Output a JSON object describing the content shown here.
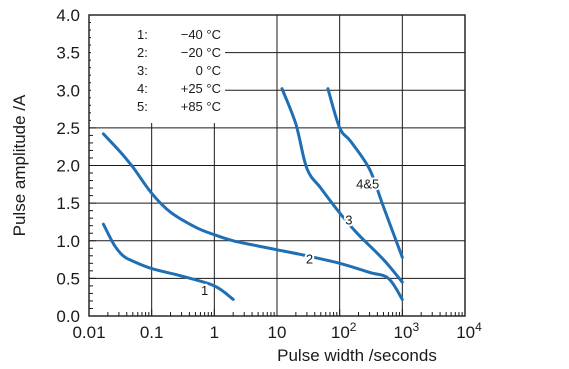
{
  "chart_data": {
    "type": "line",
    "xlabel": "Pulse width /seconds",
    "ylabel": "Pulse amplitude /A",
    "x_scale": "log",
    "xlim": [
      0.01,
      10000
    ],
    "ylim": [
      0,
      4
    ],
    "grid": true,
    "x_ticks": [
      {
        "value": 0.01,
        "base": "0.01",
        "exp": ""
      },
      {
        "value": 0.1,
        "base": "0.1",
        "exp": ""
      },
      {
        "value": 1,
        "base": "1",
        "exp": ""
      },
      {
        "value": 10,
        "base": "10",
        "exp": ""
      },
      {
        "value": 100,
        "base": "10",
        "exp": "2"
      },
      {
        "value": 1000,
        "base": "10",
        "exp": "3"
      },
      {
        "value": 10000,
        "base": "10",
        "exp": "4"
      }
    ],
    "y_ticks": [
      "0.0",
      "0.5",
      "1.0",
      "1.5",
      "2.0",
      "2.5",
      "3.0",
      "3.5",
      "4.0"
    ],
    "legend": {
      "placement": "top-left",
      "entries": [
        {
          "key": "1:",
          "label": "−40 °C"
        },
        {
          "key": "2:",
          "label": "−20 °C"
        },
        {
          "key": "3:",
          "label": "0 °C"
        },
        {
          "key": "4:",
          "label": "+25 °C"
        },
        {
          "key": "5:",
          "label": "+85 °C"
        }
      ]
    },
    "line_color": "#1f6fb5",
    "series": [
      {
        "label": "1",
        "label_at": [
          0.7,
          0.33
        ],
        "points": [
          [
            0.017,
            1.22
          ],
          [
            0.025,
            0.95
          ],
          [
            0.035,
            0.8
          ],
          [
            0.05,
            0.73
          ],
          [
            0.1,
            0.63
          ],
          [
            0.3,
            0.53
          ],
          [
            1,
            0.4
          ],
          [
            2,
            0.22
          ]
        ]
      },
      {
        "label": "2",
        "label_at": [
          33,
          0.75
        ],
        "points": [
          [
            0.017,
            2.42
          ],
          [
            0.03,
            2.2
          ],
          [
            0.05,
            1.98
          ],
          [
            0.1,
            1.63
          ],
          [
            0.2,
            1.38
          ],
          [
            0.5,
            1.18
          ],
          [
            1,
            1.08
          ],
          [
            2,
            1.0
          ],
          [
            5,
            0.93
          ],
          [
            10,
            0.88
          ],
          [
            30,
            0.8
          ],
          [
            100,
            0.7
          ],
          [
            300,
            0.58
          ],
          [
            600,
            0.5
          ],
          [
            1000,
            0.22
          ]
        ]
      },
      {
        "label": "3",
        "label_at": [
          140,
          1.27
        ],
        "points": [
          [
            12,
            3.02
          ],
          [
            20,
            2.55
          ],
          [
            30,
            1.96
          ],
          [
            50,
            1.7
          ],
          [
            100,
            1.37
          ],
          [
            200,
            1.08
          ],
          [
            500,
            0.75
          ],
          [
            1000,
            0.45
          ]
        ]
      },
      {
        "label": "4&5",
        "label_at": [
          280,
          1.75
        ],
        "points": [
          [
            65,
            3.02
          ],
          [
            100,
            2.5
          ],
          [
            150,
            2.32
          ],
          [
            300,
            1.95
          ],
          [
            500,
            1.45
          ],
          [
            1000,
            0.78
          ]
        ]
      }
    ]
  }
}
